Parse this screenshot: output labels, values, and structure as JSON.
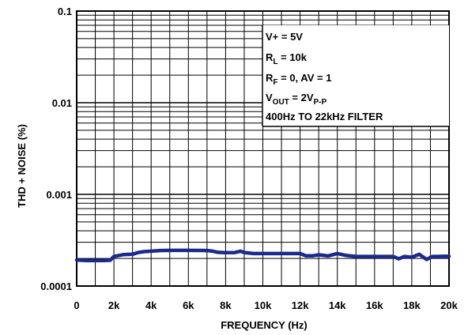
{
  "chart_data": {
    "type": "line",
    "xlabel": "FREQUENCY (Hz)",
    "ylabel": "THD + NOISE (%)",
    "x_scale": "linear",
    "y_scale": "log",
    "xlim": [
      0,
      20000
    ],
    "ylim": [
      0.0001,
      0.1
    ],
    "grid": true,
    "x_ticks": [
      {
        "value": 0,
        "label": "0"
      },
      {
        "value": 2000,
        "label": "2k"
      },
      {
        "value": 4000,
        "label": "4k"
      },
      {
        "value": 6000,
        "label": "6k"
      },
      {
        "value": 8000,
        "label": "8k"
      },
      {
        "value": 10000,
        "label": "10k"
      },
      {
        "value": 12000,
        "label": "12k"
      },
      {
        "value": 14000,
        "label": "14k"
      },
      {
        "value": 16000,
        "label": "16k"
      },
      {
        "value": 18000,
        "label": "18k"
      },
      {
        "value": 20000,
        "label": "20k"
      }
    ],
    "y_ticks": [
      {
        "value": 0.1,
        "label": "0.1"
      },
      {
        "value": 0.01,
        "label": "0.01"
      },
      {
        "value": 0.001,
        "label": "0.001"
      },
      {
        "value": 0.0001,
        "label": "0.0001"
      }
    ],
    "series": [
      {
        "color": "#1a2a8c",
        "x": [
          0,
          500,
          1000,
          1500,
          1800,
          2000,
          2500,
          3000,
          3300,
          3600,
          4000,
          4500,
          5000,
          6000,
          7000,
          7300,
          7600,
          8000,
          8500,
          8800,
          9000,
          9500,
          10000,
          11000,
          12000,
          12300,
          12700,
          13000,
          13500,
          14000,
          14500,
          15000,
          16000,
          17000,
          17300,
          17600,
          18000,
          18400,
          18800,
          19100,
          19400,
          19700,
          20000
        ],
        "y": [
          0.000192,
          0.00019,
          0.00019,
          0.00019,
          0.000191,
          0.00021,
          0.00022,
          0.000222,
          0.000232,
          0.000237,
          0.00024,
          0.000244,
          0.000245,
          0.000245,
          0.000244,
          0.00024,
          0.000233,
          0.000231,
          0.000232,
          0.00024,
          0.000232,
          0.000226,
          0.000226,
          0.000226,
          0.000226,
          0.000214,
          0.000214,
          0.000219,
          0.000213,
          0.000226,
          0.000215,
          0.00021,
          0.00021,
          0.00021,
          0.000198,
          0.00021,
          0.000206,
          0.000222,
          0.000195,
          0.00021,
          0.00021,
          0.000211,
          0.000211
        ]
      }
    ],
    "annotations": [
      {
        "parts": [
          {
            "t": "V+ = 5V"
          }
        ]
      },
      {
        "parts": [
          {
            "t": "R"
          },
          {
            "t": "L",
            "sub": true
          },
          {
            "t": " = 10k"
          }
        ]
      },
      {
        "parts": [
          {
            "t": "R"
          },
          {
            "t": "F",
            "sub": true
          },
          {
            "t": " = 0, AV = 1"
          }
        ]
      },
      {
        "parts": [
          {
            "t": "V"
          },
          {
            "t": "OUT",
            "sub": true
          },
          {
            "t": " = 2V"
          },
          {
            "t": "P-P",
            "sub": true
          }
        ]
      },
      {
        "parts": [
          {
            "t": "400Hz TO 22kHz FILTER"
          }
        ]
      }
    ]
  }
}
